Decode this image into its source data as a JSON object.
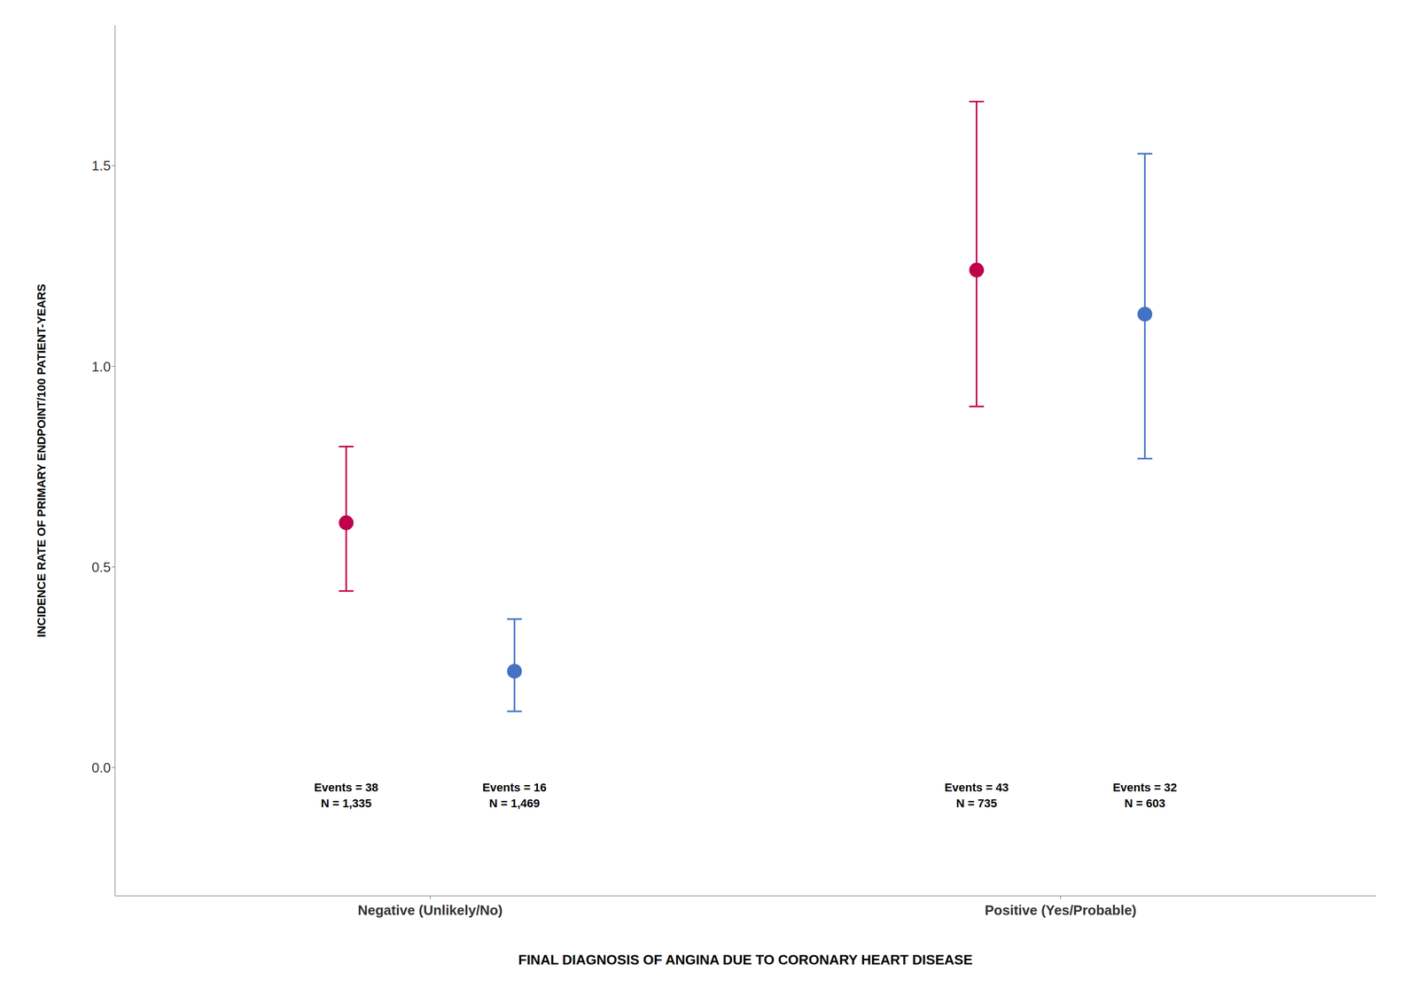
{
  "chart_data": {
    "type": "scatter",
    "xlabel": "FINAL DIAGNOSIS OF ANGINA DUE TO CORONARY HEART DISEASE",
    "ylabel": "INCIDENCE RATE OF PRIMARY ENDPOINT/100 PATIENT-YEARS",
    "categories": [
      "Negative (Unlikely/No)",
      "Positive (Yes/Probable)"
    ],
    "series": [
      {
        "color": "#c0004a",
        "marker": "circle",
        "values": [
          0.61,
          1.24
        ],
        "lower": [
          0.44,
          0.9
        ],
        "upper": [
          0.8,
          1.66
        ],
        "annotations": [
          "Events = 38\nN = 1,335",
          "Events = 43\nN = 735"
        ]
      },
      {
        "color": "#4472c4",
        "marker": "circle",
        "values": [
          0.24,
          1.13
        ],
        "lower": [
          0.14,
          0.77
        ],
        "upper": [
          0.37,
          1.53
        ],
        "annotations": [
          "Events = 16\nN = 1,469",
          "Events = 32\nN = 603"
        ]
      }
    ],
    "ylim": [
      -0.32,
      1.85
    ],
    "yticks": [
      {
        "value": 0.0,
        "label": "0.0"
      },
      {
        "value": 0.5,
        "label": "0.5"
      },
      {
        "value": 1.0,
        "label": "1.0"
      },
      {
        "value": 1.5,
        "label": "1.5"
      }
    ],
    "grid": false
  }
}
